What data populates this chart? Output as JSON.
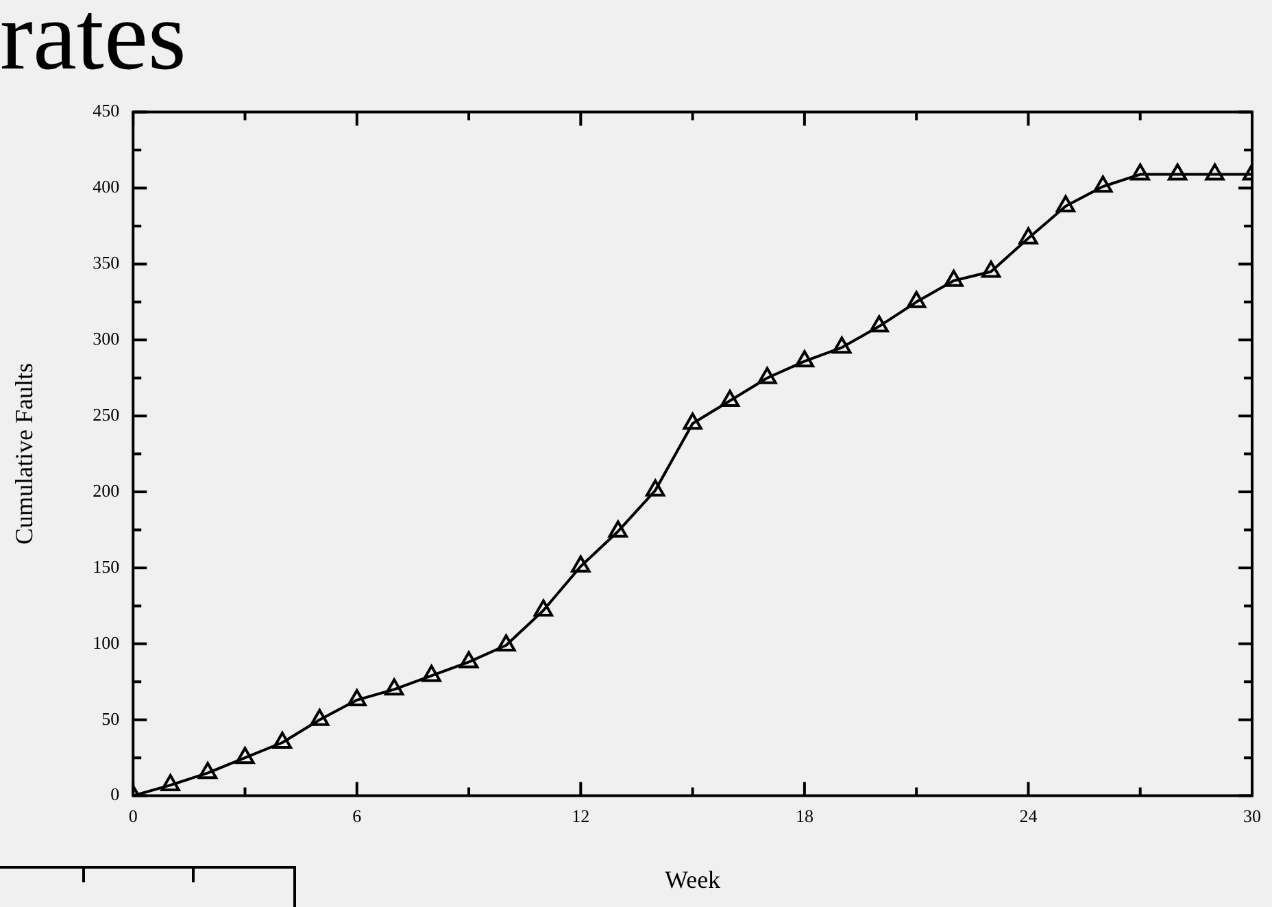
{
  "chart_data": {
    "type": "line",
    "title": "rates",
    "xlabel": "Week",
    "ylabel": "Cumulative Faults",
    "x": [
      0,
      1,
      2,
      3,
      4,
      5,
      6,
      7,
      8,
      9,
      10,
      11,
      12,
      13,
      14,
      15,
      16,
      17,
      18,
      19,
      20,
      21,
      22,
      23,
      24,
      25,
      26,
      27,
      28,
      29,
      30
    ],
    "series": [
      {
        "color": "#000000",
        "values": [
          0,
          7,
          15,
          25,
          35,
          50,
          63,
          70,
          79,
          88,
          99,
          122,
          151,
          174,
          201,
          245,
          260,
          275,
          286,
          295,
          309,
          325,
          339,
          345,
          367,
          388,
          401,
          409,
          409,
          409,
          409
        ]
      }
    ],
    "xlim": [
      0,
      30
    ],
    "xticks": [
      0,
      {
        "value": 3,
        "label": null
      },
      6,
      {
        "value": 9,
        "label": null
      },
      12,
      {
        "value": 15,
        "label": null
      },
      18,
      {
        "value": 21,
        "label": null
      },
      24,
      {
        "value": 27,
        "label": null
      },
      30
    ],
    "ylim": [
      0,
      450
    ],
    "yticks": [
      0,
      {
        "value": 25,
        "label": null
      },
      50,
      {
        "value": 75,
        "label": null
      },
      100,
      {
        "value": 125,
        "label": null
      },
      150,
      {
        "value": 175,
        "label": null
      },
      200,
      {
        "value": 225,
        "label": null
      },
      250,
      {
        "value": 275,
        "label": null
      },
      300,
      {
        "value": 325,
        "label": null
      },
      350,
      {
        "value": 375,
        "label": null
      },
      400,
      {
        "value": 425,
        "label": null
      },
      450
    ],
    "grid": false,
    "legend": false,
    "marker": "triangle",
    "line_style": "solid"
  }
}
